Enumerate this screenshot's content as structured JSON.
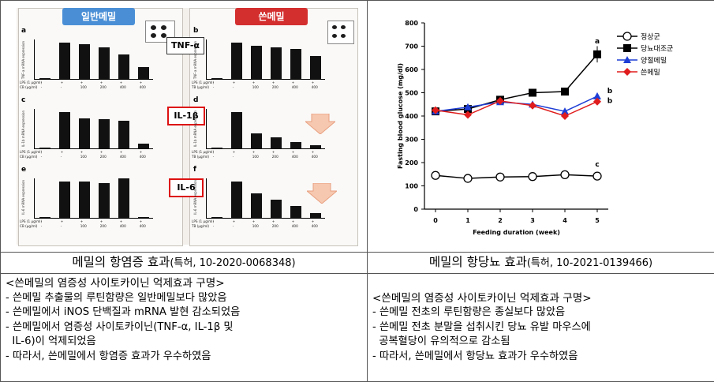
{
  "chart_data": [
    {
      "type": "bar",
      "panels": [
        {
          "letter": "a",
          "ylabel": "TNF-a mRNA expression",
          "values": [
            0.02,
            1.0,
            0.95,
            0.87,
            0.68,
            0.33
          ]
        },
        {
          "letter": "b",
          "ylabel": "TNF-a mRNA expression",
          "values": [
            0.02,
            1.0,
            0.92,
            0.86,
            0.83,
            0.62
          ]
        },
        {
          "letter": "c",
          "ylabel": "IL-1b mRNA expression",
          "values": [
            0.02,
            1.0,
            0.82,
            0.8,
            0.76,
            0.12
          ]
        },
        {
          "letter": "d",
          "ylabel": "IL-1b mRNA expression",
          "values": [
            0.02,
            1.0,
            0.42,
            0.3,
            0.18,
            0.08
          ]
        },
        {
          "letter": "e",
          "ylabel": "IL-6 mRNA expression",
          "values": [
            0.02,
            1.0,
            1.0,
            0.95,
            1.08,
            0.03
          ]
        },
        {
          "letter": "f",
          "ylabel": "IL-6 mRNA expression",
          "values": [
            0.02,
            1.0,
            0.68,
            0.5,
            0.32,
            0.12
          ]
        }
      ],
      "row_labels_left": [
        "LPS (1 μg/ml)",
        "CB (μg/ml)"
      ],
      "row_labels_right": [
        "LPS (1 μg/ml)",
        "TB (μg/ml)"
      ],
      "lps_row": [
        "-",
        "+",
        "+",
        "+",
        "+",
        "+"
      ],
      "dose_row": [
        "-",
        "-",
        "100",
        "200",
        "400",
        "400"
      ],
      "headers": {
        "left": "일반메밀",
        "right": "쓴메밀"
      },
      "cytokine_labels": [
        "TNF-α",
        "IL-1β",
        "IL-6"
      ],
      "colors": {
        "left_header": "#4a8fd6",
        "right_header": "#d42f2f",
        "arrow": "#f6c8b0"
      }
    },
    {
      "type": "line",
      "ylabel": "Fasting blood glucose (mg/dl)",
      "xlabel": "Feeding duration (week)",
      "x": [
        0,
        1,
        2,
        3,
        4,
        5
      ],
      "ylim": [
        0,
        800
      ],
      "yticks": [
        "0",
        "100",
        "200",
        "300",
        "400",
        "500",
        "600",
        "700",
        "800"
      ],
      "legend_position": "top-right",
      "series": [
        {
          "name": "정상군",
          "values": [
            145,
            132,
            138,
            140,
            148,
            142
          ],
          "color": "#000000",
          "marker": "open-circle",
          "label": "c"
        },
        {
          "name": "당뇨대조군",
          "values": [
            420,
            430,
            470,
            500,
            505,
            665
          ],
          "color": "#000000",
          "marker": "square",
          "label": "a"
        },
        {
          "name": "양절메밀",
          "values": [
            420,
            438,
            460,
            450,
            420,
            485
          ],
          "color": "#1f3fd6",
          "marker": "triangle",
          "label": "b"
        },
        {
          "name": "쓴메밀",
          "values": [
            425,
            405,
            465,
            445,
            400,
            462
          ],
          "color": "#e01c1c",
          "marker": "diamond",
          "label": "b"
        }
      ]
    }
  ],
  "captions": {
    "left": {
      "main": "메밀의 항염증 효과",
      "sub": "(특허, 10-2020-0068348)"
    },
    "right": {
      "main": "메밀의 항당뇨 효과",
      "sub": "(특허, 10-2021-0139466)"
    }
  },
  "left_text": {
    "title": "<쓴메밀의 염증성 사이토카이닌 억제효과 구명>",
    "lines": [
      "- 쓴메밀 추출물의 루틴함량은 일반메밀보다 많았음",
      "- 쓴메밀에서 iNOS 단백질과 mRNA 발현 감소되었음",
      "- 쓴메밀에서 염증성 사이토카이닌(TNF-α, IL-1β 및",
      "  IL-6)이 억제되었음",
      "- 따라서, 쓴메밀에서 항염증 효과가 우수하였음"
    ]
  },
  "right_text": {
    "title": "<쓴메밀의 염증성 사이토카이닌 억제효과 구명>",
    "lines": [
      "- 쓴메밀 전초의 루틴함량은 종실보다 많았음",
      "- 쓴메밀 전초 분말을 섭취시킨 당뇨 유발 마우스에",
      "  공복혈당이 유의적으로 감소됨",
      "- 따라서, 쓴메밀에서 항당뇨 효과가 우수하였음"
    ]
  }
}
